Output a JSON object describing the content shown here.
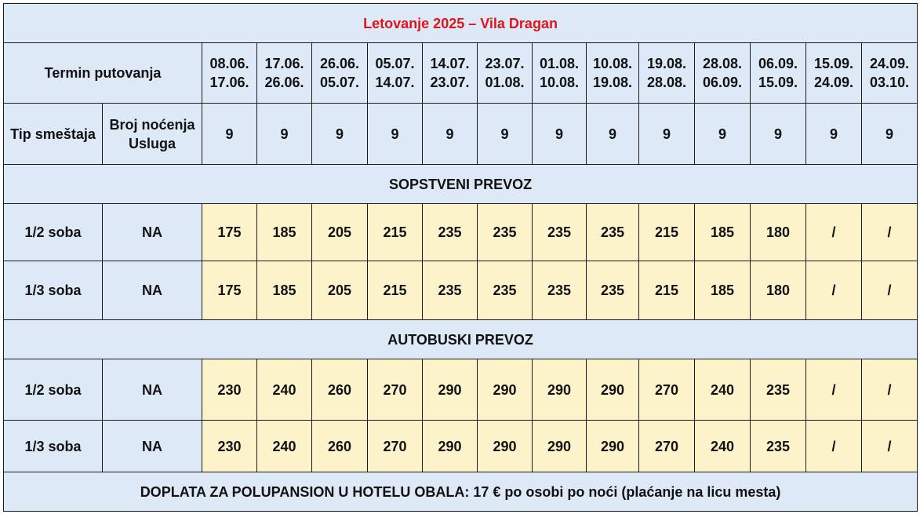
{
  "title": "Letovanje 2025 – Vila Dragan",
  "header": {
    "termin_label": "Termin putovanja",
    "tip_label": "Tip smeštaja",
    "broj_label": "Broj noćenja",
    "usluga_label": "Usluga"
  },
  "terms": [
    {
      "from": "08.06.",
      "to": "17.06.",
      "nights": "9"
    },
    {
      "from": "17.06.",
      "to": "26.06.",
      "nights": "9"
    },
    {
      "from": "26.06.",
      "to": "05.07.",
      "nights": "9"
    },
    {
      "from": "05.07.",
      "to": "14.07.",
      "nights": "9"
    },
    {
      "from": "14.07.",
      "to": "23.07.",
      "nights": "9"
    },
    {
      "from": "23.07.",
      "to": "01.08.",
      "nights": "9"
    },
    {
      "from": "01.08.",
      "to": "10.08.",
      "nights": "9"
    },
    {
      "from": "10.08.",
      "to": "19.08.",
      "nights": "9"
    },
    {
      "from": "19.08.",
      "to": "28.08.",
      "nights": "9"
    },
    {
      "from": "28.08.",
      "to": "06.09.",
      "nights": "9"
    },
    {
      "from": "06.09.",
      "to": "15.09.",
      "nights": "9"
    },
    {
      "from": "15.09.",
      "to": "24.09.",
      "nights": "9"
    },
    {
      "from": "24.09.",
      "to": "03.10.",
      "nights": "9"
    }
  ],
  "sections": [
    {
      "label": "SOPSTVENI PREVOZ",
      "rows": [
        {
          "room": "1/2 soba",
          "service": "NA",
          "prices": [
            "175",
            "185",
            "205",
            "215",
            "235",
            "235",
            "235",
            "235",
            "215",
            "185",
            "180",
            "/",
            "/"
          ]
        },
        {
          "room": "1/3 soba",
          "service": "NA",
          "prices": [
            "175",
            "185",
            "205",
            "215",
            "235",
            "235",
            "235",
            "235",
            "215",
            "185",
            "180",
            "/",
            "/"
          ]
        }
      ]
    },
    {
      "label": "AUTOBUSKI PREVOZ",
      "rows": [
        {
          "room": "1/2 soba",
          "service": "NA",
          "prices": [
            "230",
            "240",
            "260",
            "270",
            "290",
            "290",
            "290",
            "290",
            "270",
            "240",
            "235",
            "/",
            "/"
          ]
        },
        {
          "room": "1/3 soba",
          "service": "NA",
          "prices": [
            "230",
            "240",
            "260",
            "270",
            "290",
            "290",
            "290",
            "290",
            "270",
            "240",
            "235",
            "/",
            "/"
          ]
        }
      ]
    }
  ],
  "footer": "DOPLATA ZA POLUPANSION U HOTELU OBALA: 17 € po osobi po noći (plaćanje na licu mesta)"
}
